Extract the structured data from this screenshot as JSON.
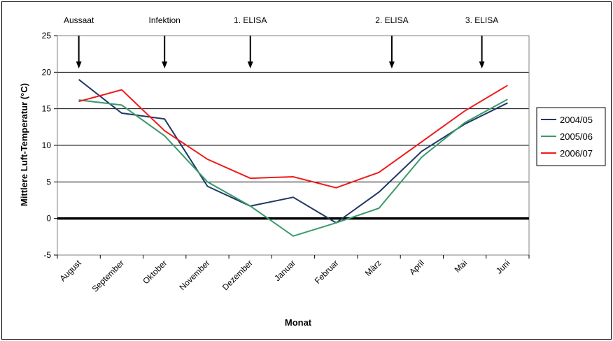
{
  "chart_data": {
    "type": "line",
    "title": "",
    "xlabel": "Monat",
    "ylabel": "Mittlere Luft-Temperatur (°C)",
    "ylim": [
      -5,
      25
    ],
    "yticks": [
      -5,
      0,
      5,
      10,
      15,
      20,
      25
    ],
    "grid": true,
    "legend_position": "right",
    "categories": [
      "August",
      "September",
      "Oktober",
      "November",
      "Dezember",
      "Januar",
      "Februar",
      "März",
      "April",
      "Mai",
      "Juni"
    ],
    "series": [
      {
        "name": "2004/05",
        "color": "#1f3864",
        "values": [
          19.0,
          14.4,
          13.6,
          4.4,
          1.7,
          2.9,
          -0.6,
          3.6,
          9.2,
          12.9,
          15.8
        ]
      },
      {
        "name": "2005/06",
        "color": "#3a9a6a",
        "values": [
          16.2,
          15.5,
          11.3,
          5.0,
          1.7,
          -2.4,
          -0.6,
          1.4,
          8.4,
          13.1,
          16.3
        ]
      },
      {
        "name": "2006/07",
        "color": "#ee1c1c",
        "values": [
          16.0,
          17.6,
          12.0,
          8.1,
          5.5,
          5.7,
          4.2,
          6.3,
          10.5,
          14.7,
          18.2
        ]
      }
    ],
    "annotations": [
      {
        "label": "Aussaat",
        "x_index": 0
      },
      {
        "label": "Infektion",
        "x_index": 2
      },
      {
        "label": "1. ELISA",
        "x_index": 4
      },
      {
        "label": "2. ELISA",
        "x_index": 7.3
      },
      {
        "label": "3. ELISA",
        "x_index": 9.4
      }
    ]
  }
}
